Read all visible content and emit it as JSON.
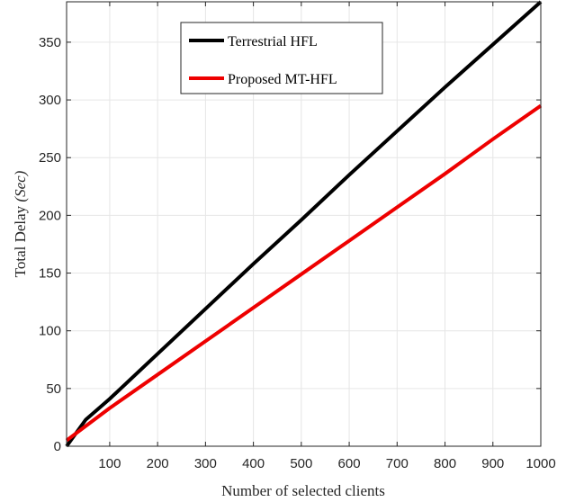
{
  "chart_data": {
    "type": "line",
    "xlabel": "Number of selected clients",
    "ylabel_main": "Total Delay ",
    "ylabel_unit": "(Sec)",
    "xlim": [
      10,
      1000
    ],
    "ylim": [
      0,
      385
    ],
    "xticks": [
      100,
      200,
      300,
      400,
      500,
      600,
      700,
      800,
      900,
      1000
    ],
    "yticks": [
      0,
      50,
      100,
      150,
      200,
      250,
      300,
      350
    ],
    "grid": true,
    "legend_position": "top-center",
    "series": [
      {
        "name": "Terrestrial HFL",
        "color": "#000000",
        "x": [
          10,
          50,
          100,
          200,
          300,
          400,
          500,
          600,
          700,
          800,
          900,
          1000
        ],
        "y": [
          0,
          23,
          41,
          80,
          119,
          158,
          196,
          235,
          273,
          311,
          348,
          385
        ]
      },
      {
        "name": "Proposed MT-HFL",
        "color": "#ee0000",
        "x": [
          10,
          100,
          200,
          300,
          400,
          500,
          600,
          700,
          800,
          900,
          1000
        ],
        "y": [
          5,
          33,
          62,
          91,
          120,
          149,
          178,
          207,
          236,
          266,
          295
        ]
      }
    ]
  }
}
